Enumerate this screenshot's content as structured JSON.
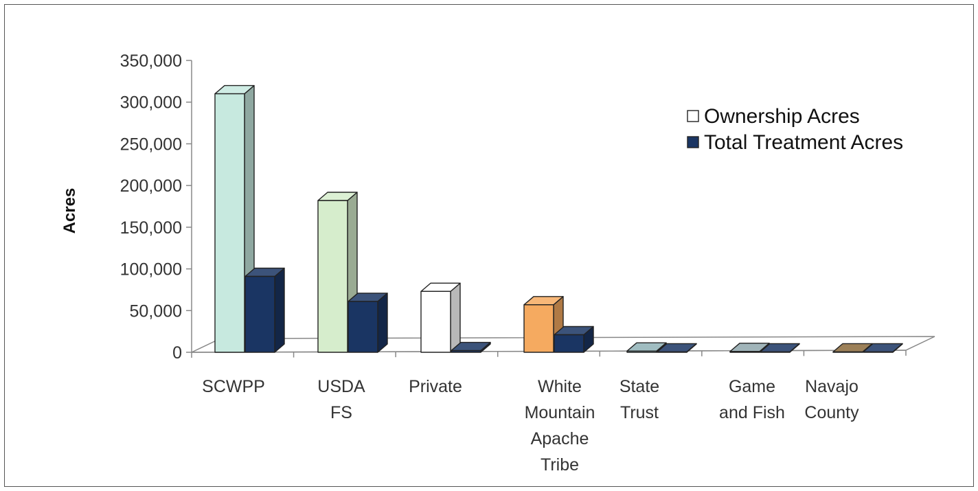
{
  "chart_data": {
    "type": "bar",
    "title": "",
    "xlabel": "",
    "ylabel": "Acres",
    "ylim": [
      0,
      350000
    ],
    "yticks": [
      "0",
      "50,000",
      "100,000",
      "150,000",
      "200,000",
      "250,000",
      "300,000",
      "350,000"
    ],
    "grid": false,
    "legend_position": "top-right",
    "categories": [
      [
        "SCWPP"
      ],
      [
        "USDA",
        "FS"
      ],
      [
        "Private"
      ],
      [
        "White",
        "Mountain",
        "Apache",
        "Tribe"
      ],
      [
        "State",
        "Trust"
      ],
      [
        "Game",
        "and Fish"
      ],
      [
        "Navajo",
        "County"
      ]
    ],
    "series": [
      {
        "name": "Ownership Acres",
        "legend_color": "#ffffff",
        "values": [
          310000,
          182000,
          73000,
          57000,
          1500,
          1000,
          500
        ],
        "colors": [
          "#c7e9df",
          "#d6edcc",
          "#ffffff",
          "#f5aa60",
          "#8fb1b6",
          "#8fa7ad",
          "#8a6a3a"
        ]
      },
      {
        "name": "Total Treatment Acres",
        "legend_color": "#1a3563",
        "values": [
          91000,
          61000,
          2000,
          21000,
          500,
          500,
          500
        ],
        "colors": [
          "#1a3563",
          "#1a3563",
          "#1a3563",
          "#1a3563",
          "#1a3563",
          "#1a3563",
          "#1a3563"
        ]
      }
    ]
  }
}
